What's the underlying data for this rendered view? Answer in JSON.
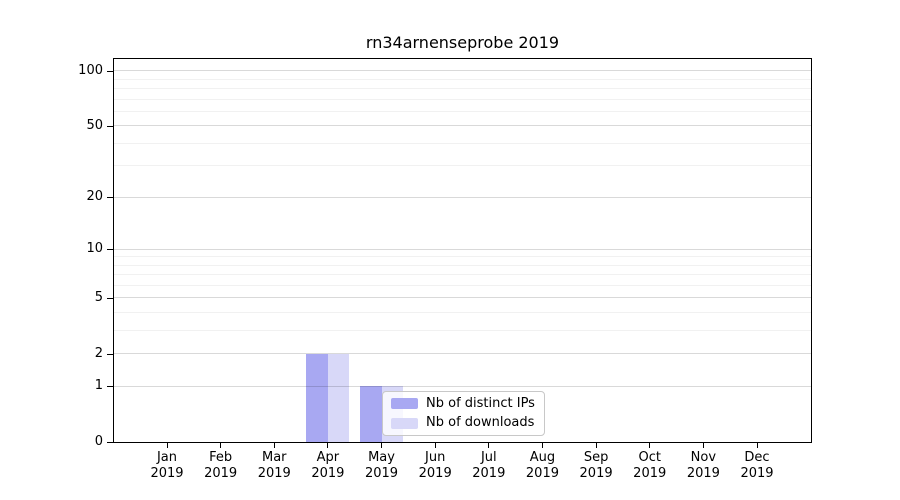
{
  "chart_data": {
    "type": "bar",
    "title": "rn34arnenseprobe 2019",
    "year_label": "2019",
    "categories": [
      "Jan",
      "Feb",
      "Mar",
      "Apr",
      "May",
      "Jun",
      "Jul",
      "Aug",
      "Sep",
      "Oct",
      "Nov",
      "Dec"
    ],
    "series": [
      {
        "name": "Nb of distinct IPs",
        "key": "distinct-ips",
        "color": "#a8a8f2",
        "values": [
          0,
          0,
          0,
          2,
          1,
          0,
          0,
          0,
          0,
          0,
          0,
          0
        ]
      },
      {
        "name": "Nb of downloads",
        "key": "downloads",
        "color": "#d8d8f8",
        "values": [
          0,
          0,
          0,
          2,
          1,
          0,
          0,
          0,
          0,
          0,
          0,
          0
        ]
      }
    ],
    "yscale": "log1p",
    "ylim": [
      0,
      116
    ],
    "y_major_ticks": [
      0,
      1,
      2,
      5,
      10,
      20,
      50,
      100
    ],
    "y_minor_ticks": [
      3,
      4,
      6,
      7,
      8,
      9,
      30,
      40,
      60,
      70,
      80,
      90
    ],
    "xlabel": "",
    "ylabel": "",
    "grid": "on",
    "legend_position": "inside lower center"
  },
  "styles": {
    "bar_color_distinct_ips": "#a8a8f2",
    "bar_color_downloads": "#d8d8f8",
    "grid_major_color": "#d9d9d9",
    "grid_minor_color": "#f1f1f1",
    "axis_color": "#000000",
    "legend_border_color": "#c8c8c8",
    "background_color": "#ffffff"
  }
}
